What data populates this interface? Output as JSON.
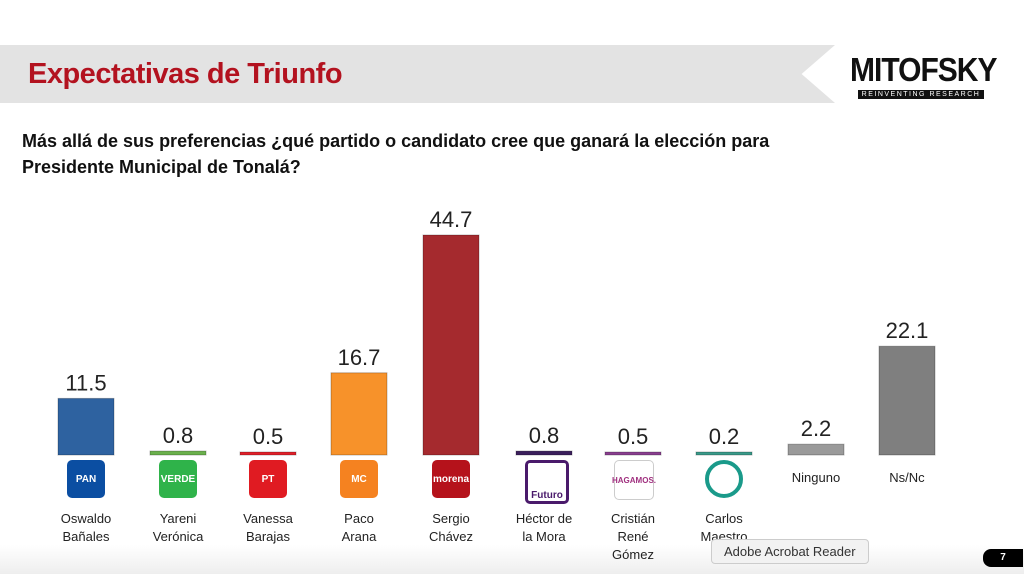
{
  "header": {
    "title": "Expectativas de Triunfo",
    "logo_name": "MITOFSKY",
    "logo_tagline": "REINVENTING RESEARCH"
  },
  "question": "Más allá de sus preferencias ¿qué partido o candidato cree que ganará la elección para Presidente Municipal de Tonalá?",
  "chart_data": {
    "type": "bar",
    "title": "",
    "ylim": [
      0,
      50
    ],
    "grid": false,
    "categories": [
      "Oswaldo Bañales",
      "Yareni Verónica",
      "Vanessa Barajas",
      "Paco Arana",
      "Sergio Chávez",
      "Héctor de la Mora",
      "Cristián René Gómez",
      "Carlos Maestro",
      "Ninguno",
      "Ns/Nc"
    ],
    "values": [
      11.5,
      0.8,
      0.5,
      16.7,
      44.7,
      0.8,
      0.5,
      0.2,
      2.2,
      22.1
    ],
    "value_labels": [
      "11.5",
      "0.8",
      "0.5",
      "16.7",
      "44.7",
      "0.8",
      "0.5",
      "0.2",
      "2.2",
      "22.1"
    ],
    "label_lines": [
      [
        "Oswaldo",
        "Bañales"
      ],
      [
        "Yareni",
        "Verónica"
      ],
      [
        "Vanessa",
        "Barajas"
      ],
      [
        "Paco",
        "Arana"
      ],
      [
        "Sergio",
        "Chávez"
      ],
      [
        "Héctor de",
        "la Mora"
      ],
      [
        "Cristián",
        "René",
        "Gómez"
      ],
      [
        "Carlos",
        "Maestro"
      ],
      [
        "Ninguno"
      ],
      [
        "Ns/Nc"
      ]
    ],
    "colors": [
      "#2e62a0",
      "#6ab04c",
      "#e0202a",
      "#f7922a",
      "#a52a2e",
      "#3b1f5c",
      "#8a3f8f",
      "#3a9a8a",
      "#9a9a9a",
      "#7f7f7f"
    ],
    "party_logos": [
      {
        "text": "PAN",
        "color": "#0b4ea2"
      },
      {
        "text": "VERDE",
        "color": "#2fb34a"
      },
      {
        "text": "PT",
        "color": "#e01b22"
      },
      {
        "text": "MC",
        "color": "#f58220"
      },
      {
        "text": "morena",
        "color": "#b5121b"
      },
      {
        "text": "Futuro",
        "color": "#4a1a6b"
      },
      {
        "text": "HAGAMOS.",
        "color": "#a0307f"
      },
      {
        "text": "",
        "color": "#1a9a8a"
      },
      null,
      null
    ]
  },
  "tooltip": "Adobe Acrobat Reader",
  "page_number": "7"
}
